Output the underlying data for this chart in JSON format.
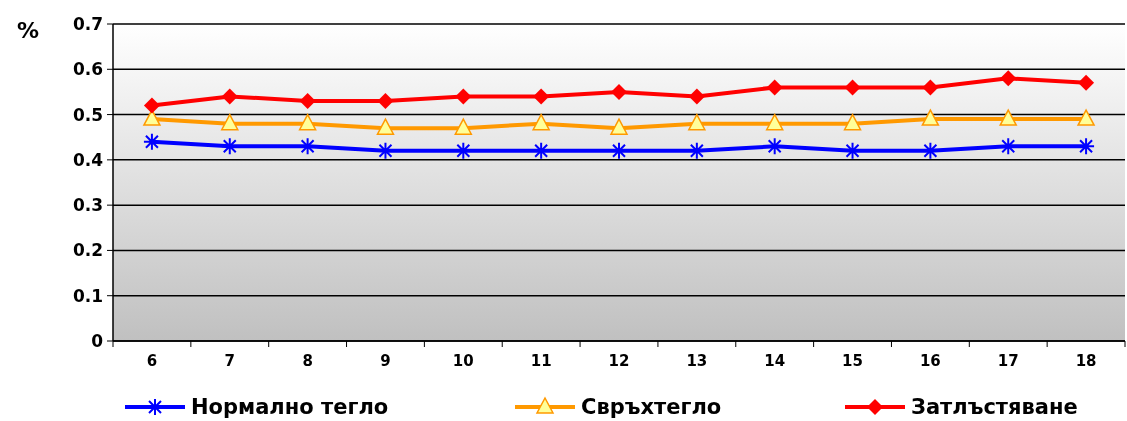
{
  "chart_data": {
    "type": "line",
    "ylabel": "%",
    "categories": [
      "6",
      "7",
      "8",
      "9",
      "10",
      "11",
      "12",
      "13",
      "14",
      "15",
      "16",
      "17",
      "18"
    ],
    "series": [
      {
        "name": "Нормално тегло",
        "color": "#0000ff",
        "marker": "cross",
        "values": [
          0.44,
          0.43,
          0.43,
          0.42,
          0.42,
          0.42,
          0.42,
          0.42,
          0.43,
          0.42,
          0.42,
          0.43,
          0.43
        ]
      },
      {
        "name": "Свръхтегло",
        "color": "#ff9900",
        "marker": "triangle",
        "values": [
          0.49,
          0.48,
          0.48,
          0.47,
          0.47,
          0.48,
          0.47,
          0.48,
          0.48,
          0.48,
          0.49,
          0.49,
          0.49
        ]
      },
      {
        "name": "Затлъстяване",
        "color": "#ff0000",
        "marker": "diamond",
        "values": [
          0.52,
          0.54,
          0.53,
          0.53,
          0.54,
          0.54,
          0.55,
          0.54,
          0.56,
          0.56,
          0.56,
          0.58,
          0.57
        ]
      }
    ],
    "ylim": [
      0,
      0.7
    ],
    "yticks": [
      0,
      0.1,
      0.2,
      0.3,
      0.4,
      0.5,
      0.6,
      0.7
    ],
    "grid": "y",
    "legend": "bottom"
  }
}
